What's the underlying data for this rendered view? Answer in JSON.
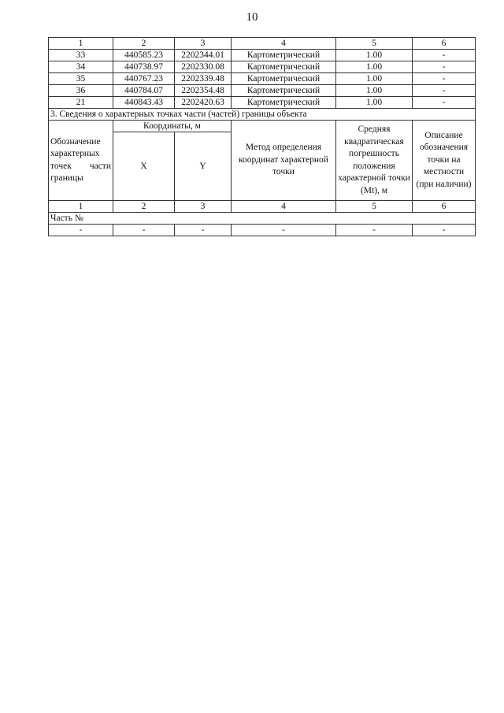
{
  "page_number": "10",
  "column_numbers": [
    "1",
    "2",
    "3",
    "4",
    "5",
    "6"
  ],
  "rows": [
    [
      "33",
      "440585.23",
      "2202344.01",
      "Картометрический",
      "1.00",
      "-"
    ],
    [
      "34",
      "440738.97",
      "2202330.08",
      "Картометрический",
      "1.00",
      "-"
    ],
    [
      "35",
      "440767.23",
      "2202339.48",
      "Картометрический",
      "1.00",
      "-"
    ],
    [
      "36",
      "440784.07",
      "2202354.48",
      "Картометрический",
      "1.00",
      "-"
    ],
    [
      "21",
      "440843.43",
      "2202420.63",
      "Картометрический",
      "1.00",
      "-"
    ]
  ],
  "section3": {
    "title": "3. Сведения о характерных точках части (частей) границы объекта",
    "headers": {
      "designation": "Обозначение характерных точек части границы",
      "coordinates": "Координаты, м",
      "x": "X",
      "y": "Y",
      "method": "Метод определения координат характерной точки",
      "error": "Средняя квадратическая погрешность положения характерной точки (Mt), м",
      "description": "Описание обозначения точки на местности (при наличии)"
    },
    "part_label": "Часть №",
    "empty_row": [
      "-",
      "-",
      "-",
      "-",
      "-",
      "-"
    ]
  }
}
